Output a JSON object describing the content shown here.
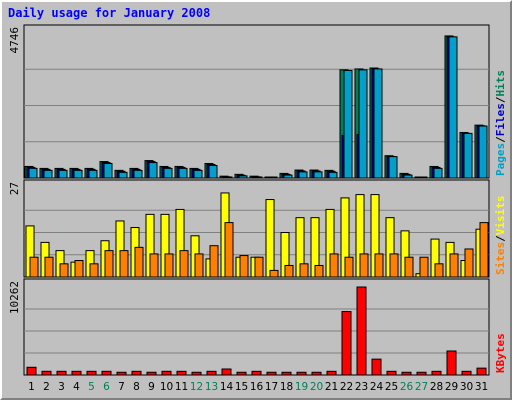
{
  "chart_data": {
    "type": "bar",
    "title": "Daily usage for January 2008",
    "categories": [
      "1",
      "2",
      "3",
      "4",
      "5",
      "6",
      "7",
      "8",
      "9",
      "10",
      "11",
      "12",
      "13",
      "14",
      "15",
      "16",
      "17",
      "18",
      "19",
      "20",
      "21",
      "22",
      "23",
      "24",
      "25",
      "26",
      "27",
      "28",
      "29",
      "30",
      "31"
    ],
    "weekend_days": [
      "5",
      "6",
      "12",
      "13",
      "19",
      "20",
      "26",
      "27"
    ],
    "panels": [
      {
        "id": "hits",
        "ymax_label": "4746",
        "ymax": 4746,
        "legend": [
          {
            "text": "Pages",
            "color": "#00a0c8"
          },
          {
            "text": "/",
            "color": "#000000"
          },
          {
            "text": "Files",
            "color": "#0000c0"
          },
          {
            "text": "/",
            "color": "#000000"
          },
          {
            "text": "Hits",
            "color": "#00805a"
          }
        ],
        "series": [
          {
            "name": "Hits",
            "color": "#00805a",
            "values": [
              378,
              314,
              314,
              314,
              314,
              538,
              250,
              314,
              570,
              378,
              378,
              314,
              474,
              60,
              120,
              60,
              30,
              150,
              260,
              260,
              250,
              3540,
              3570,
              3600,
              730,
              150,
              30,
              378,
              4650,
              1490,
              1730
            ]
          },
          {
            "name": "Files",
            "color": "#0000c0",
            "values": [
              346,
              282,
              282,
              282,
              282,
              506,
              218,
              282,
              538,
              346,
              346,
              282,
              442,
              40,
              90,
              40,
              15,
              120,
              230,
              230,
              218,
              1390,
              1420,
              3570,
              700,
              120,
              15,
              346,
              4620,
              1460,
              1710
            ]
          },
          {
            "name": "Pages",
            "color": "#00a0c8",
            "values": [
              315,
              250,
              250,
              250,
              250,
              475,
              185,
              250,
              505,
              315,
              315,
              250,
              410,
              25,
              70,
              25,
              5,
              95,
              200,
              200,
              185,
              3520,
              3540,
              3570,
              700,
              95,
              5,
              315,
              4620,
              1460,
              1700
            ]
          }
        ]
      },
      {
        "id": "visits",
        "ymax_label": "27",
        "ymax": 27,
        "legend": [
          {
            "text": "Sites",
            "color": "#ff8000"
          },
          {
            "text": "/",
            "color": "#000000"
          },
          {
            "text": "Visits",
            "color": "#ffff00"
          }
        ],
        "series": [
          {
            "name": "Visits",
            "color": "#ffff00",
            "values": [
              15.5,
              10.5,
              8,
              4.5,
              8,
              11,
              17,
              15,
              19,
              19,
              20.5,
              12.5,
              5.5,
              25.5,
              6,
              6,
              23.5,
              13.5,
              18,
              18,
              20.5,
              24,
              25,
              25,
              18,
              14,
              1,
              11.5,
              10.5,
              5,
              14.5
            ]
          },
          {
            "name": "Sites",
            "color": "#ff8000",
            "values": [
              6,
              6,
              4,
              5,
              4,
              8,
              8,
              9,
              7,
              7,
              8,
              7,
              9.5,
              16.5,
              6.5,
              6,
              2,
              3.5,
              4,
              3.5,
              7,
              6,
              7,
              7,
              7,
              6,
              6,
              4,
              7,
              8.5,
              16.5
            ]
          }
        ]
      },
      {
        "id": "kbytes",
        "ymax_label": "10262",
        "ymax": 10262,
        "legend": [
          {
            "text": "KBytes",
            "color": "#ff0000"
          }
        ],
        "series": [
          {
            "name": "KBytes",
            "color": "#ff0000",
            "values": [
              900,
              430,
              430,
              430,
              430,
              430,
              320,
              430,
              320,
              430,
              430,
              320,
              430,
              700,
              320,
              430,
              320,
              320,
              320,
              320,
              430,
              7400,
              10262,
              1850,
              430,
              320,
              320,
              430,
              2800,
              430,
              800
            ]
          }
        ]
      }
    ]
  }
}
